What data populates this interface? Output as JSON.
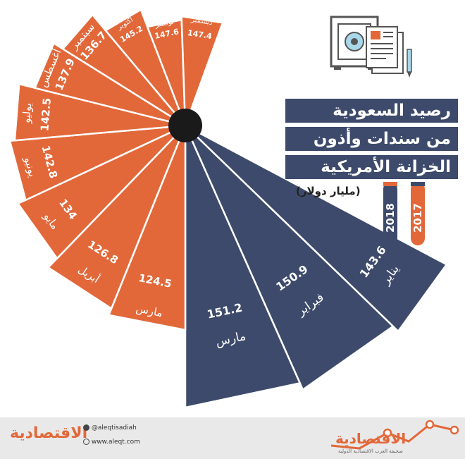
{
  "chart_data": {
    "type": "bar",
    "layout": "radial-fan",
    "title": "رصيد السعودية من سندات وأذون الخزانة الأمريكية",
    "title_lines": [
      "رصيد السعودية",
      "من سندات وأذون",
      "الخزانة الأمريكية"
    ],
    "unit": "(مليار دولار)",
    "legend": [
      {
        "year": "2018",
        "color": "#3d4a6b"
      },
      {
        "year": "2017",
        "color": "#e2683a"
      }
    ],
    "series": [
      {
        "year": "2018",
        "color": "#3d4a6b",
        "points": [
          {
            "month": "يناير",
            "value": "143.6"
          },
          {
            "month": "فبراير",
            "value": "150.9"
          },
          {
            "month": "مارس",
            "value": "151.2"
          }
        ]
      },
      {
        "year": "2017",
        "color": "#e2683a",
        "points": [
          {
            "month": "مارس",
            "value": "124.5"
          },
          {
            "month": "أبريل",
            "value": "126.8"
          },
          {
            "month": "مايو",
            "value": "134"
          },
          {
            "month": "يونيو",
            "value": "142.8"
          },
          {
            "month": "يوليو",
            "value": "142.5"
          },
          {
            "month": "أغسطس",
            "value": "137.9"
          },
          {
            "month": "سبتمبر",
            "value": "136.7"
          },
          {
            "month": "أكتوبر",
            "value": "145.2"
          },
          {
            "month": "نوفمبر",
            "value": "147.6"
          },
          {
            "month": "ديسمبر",
            "value": "147.4"
          }
        ]
      }
    ]
  },
  "footer": {
    "brand": "الاقتصادية",
    "tagline": "صحيفة العرب الاقتصادية الدولية",
    "twitter": "@aleqtisadiah",
    "website": "www.aleqt.com"
  },
  "colors": {
    "navy": "#3d4a6b",
    "orange": "#e2683a",
    "hub": "#1a1a1a",
    "footer_bg": "#e9e9e9"
  },
  "icons": [
    "safe-icon",
    "document-icon",
    "pen-icon",
    "trend-line-icon",
    "twitter-icon",
    "globe-icon"
  ]
}
